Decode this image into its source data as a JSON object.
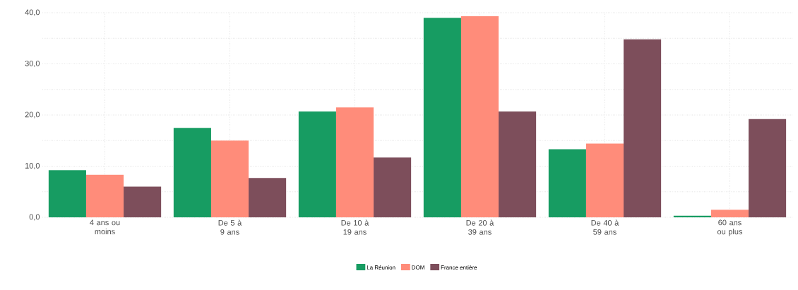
{
  "chart_data": {
    "type": "bar",
    "categories": [
      "4 ans ou moins",
      "De 5 à 9 ans",
      "De 10 à 19 ans",
      "De 20 à 39 ans",
      "De 40 à 59 ans",
      "60 ans ou plus"
    ],
    "series": [
      {
        "name": "La Réunion",
        "color": "#179c62",
        "values": [
          9.2,
          17.5,
          20.7,
          39.0,
          13.3,
          0.3
        ]
      },
      {
        "name": "DOM",
        "color": "#ff8c7a",
        "values": [
          8.3,
          15.0,
          21.5,
          39.3,
          14.4,
          1.5
        ]
      },
      {
        "name": "France entière",
        "color": "#7d4e5b",
        "values": [
          6.0,
          7.7,
          11.7,
          20.7,
          34.8,
          19.2
        ]
      }
    ],
    "ylim": [
      0,
      40
    ],
    "yticks": [
      {
        "value": 0,
        "label": "0,0"
      },
      {
        "value": 5,
        "label": null
      },
      {
        "value": 10,
        "label": "10,0"
      },
      {
        "value": 15,
        "label": null
      },
      {
        "value": 20,
        "label": "20,0"
      },
      {
        "value": 25,
        "label": null
      },
      {
        "value": 30,
        "label": "30,0"
      },
      {
        "value": 35,
        "label": null
      },
      {
        "value": 40,
        "label": "40,0"
      }
    ],
    "grid": true,
    "legend": "bottom"
  }
}
